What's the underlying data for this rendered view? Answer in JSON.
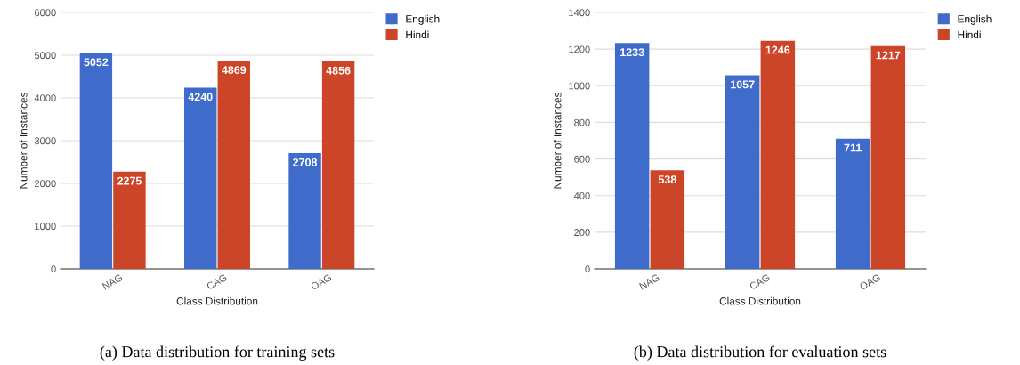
{
  "chart_data": [
    {
      "type": "bar",
      "categories": [
        "NAG",
        "CAG",
        "OAG"
      ],
      "xlabel": "Class Distribution",
      "ylabel": "Number of Instances",
      "ylim": [
        0,
        6000
      ],
      "yticks": [
        0,
        1000,
        2000,
        3000,
        4000,
        5000,
        6000
      ],
      "grid": "y",
      "legend": "top right",
      "data_labels": true,
      "annotations": [
        "(a) Data distribution for training sets"
      ],
      "series": [
        {
          "name": "English",
          "color": "#3f6bcb",
          "values": [
            5052,
            4240,
            2708
          ]
        },
        {
          "name": "Hindi",
          "color": "#cc4529",
          "values": [
            2275,
            4869,
            4856
          ]
        }
      ]
    },
    {
      "type": "bar",
      "categories": [
        "NAG",
        "CAG",
        "OAG"
      ],
      "xlabel": "Class Distribution",
      "ylabel": "Number of Instances",
      "ylim": [
        0,
        1400
      ],
      "yticks": [
        0,
        200,
        400,
        600,
        800,
        1000,
        1200,
        1400
      ],
      "grid": "y",
      "legend": "top right",
      "data_labels": true,
      "annotations": [
        "(b) Data distribution for evaluation sets"
      ],
      "series": [
        {
          "name": "English",
          "color": "#3f6bcb",
          "values": [
            1233,
            1057,
            711
          ]
        },
        {
          "name": "Hindi",
          "color": "#cc4529",
          "values": [
            538,
            1246,
            1217
          ]
        }
      ]
    }
  ]
}
